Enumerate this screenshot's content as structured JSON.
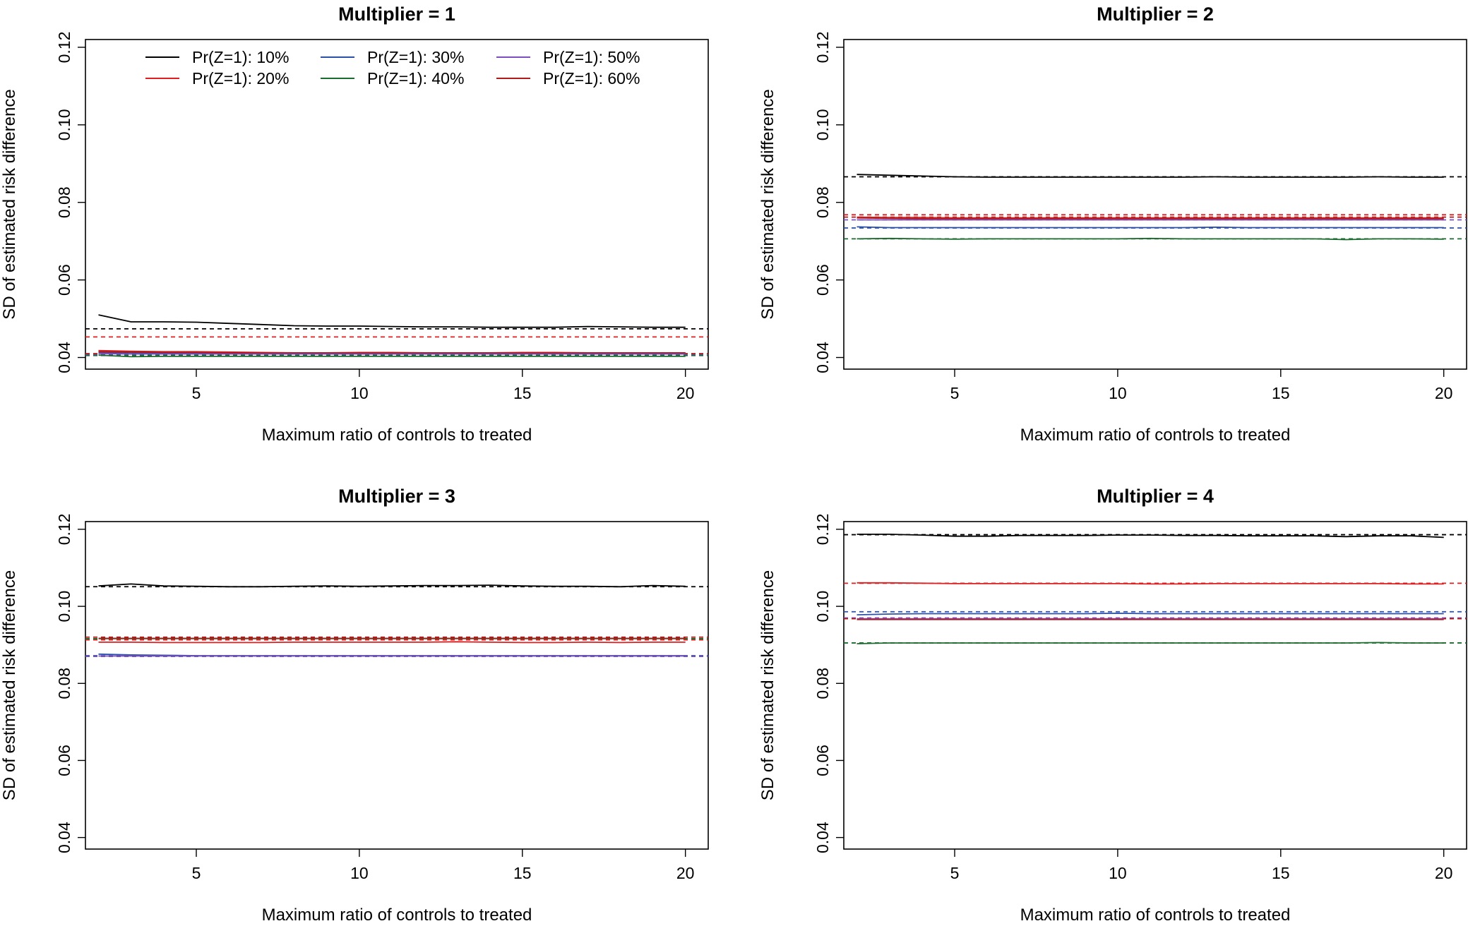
{
  "colors": {
    "10%": "#000000",
    "20%": "#DF1F1F",
    "30%": "#2C4FA8",
    "40%": "#1C6B2E",
    "50%": "#7B4FC0",
    "60%": "#B01A1A"
  },
  "chart_data": [
    {
      "type": "line",
      "title": "Multiplier = 1",
      "xlabel": "Maximum ratio of controls to treated",
      "ylabel": "SD of estimated risk difference",
      "xlim": [
        1.6,
        20.7
      ],
      "ylim": [
        0.037,
        0.122
      ],
      "xticks": [
        5,
        10,
        15,
        20
      ],
      "yticks": [
        0.04,
        0.06,
        0.08,
        0.1,
        0.12
      ],
      "ytick_labels": [
        "0.04",
        "0.06",
        "0.08",
        "0.10",
        "0.12"
      ],
      "grid": false,
      "legend": {
        "position": "top",
        "entries": [
          "Pr(Z=1): 10%",
          "Pr(Z=1): 20%",
          "Pr(Z=1): 30%",
          "Pr(Z=1): 40%",
          "Pr(Z=1): 50%",
          "Pr(Z=1): 60%"
        ]
      },
      "x": [
        2,
        3,
        4,
        5,
        6,
        7,
        8,
        9,
        10,
        11,
        12,
        13,
        14,
        15,
        16,
        17,
        18,
        19,
        20
      ],
      "series": [
        {
          "name": "Pr(Z=1): 10%",
          "color_key": "10%",
          "values": [
            0.051,
            0.0492,
            0.0492,
            0.0491,
            0.0488,
            0.0485,
            0.0482,
            0.0481,
            0.0481,
            0.048,
            0.0479,
            0.0479,
            0.0478,
            0.0478,
            0.0478,
            0.048,
            0.0479,
            0.0478,
            0.0478
          ],
          "reference": 0.0474
        },
        {
          "name": "Pr(Z=1): 20%",
          "color_key": "20%",
          "values": [
            0.0418,
            0.0416,
            0.0415,
            0.0415,
            0.0414,
            0.0413,
            0.0412,
            0.0412,
            0.0413,
            0.0413,
            0.0412,
            0.0412,
            0.0412,
            0.0413,
            0.0413,
            0.0412,
            0.0412,
            0.0412,
            0.0412
          ],
          "reference": 0.0453
        },
        {
          "name": "Pr(Z=1): 30%",
          "color_key": "30%",
          "values": [
            0.0413,
            0.0412,
            0.0411,
            0.0411,
            0.041,
            0.041,
            0.041,
            0.041,
            0.041,
            0.041,
            0.041,
            0.041,
            0.041,
            0.041,
            0.041,
            0.041,
            0.041,
            0.041,
            0.041
          ],
          "reference": 0.0408
        },
        {
          "name": "Pr(Z=1): 40%",
          "color_key": "40%",
          "values": [
            0.0406,
            0.0402,
            0.0403,
            0.0403,
            0.0403,
            0.0403,
            0.0403,
            0.0403,
            0.0403,
            0.0403,
            0.0403,
            0.0403,
            0.0403,
            0.0403,
            0.0403,
            0.0403,
            0.0403,
            0.0403,
            0.0403
          ],
          "reference": 0.0405
        },
        {
          "name": "Pr(Z=1): 50%",
          "color_key": "50%",
          "values": [
            0.041,
            0.0409,
            0.0409,
            0.0409,
            0.0409,
            0.0409,
            0.0409,
            0.0409,
            0.0409,
            0.0409,
            0.0409,
            0.0409,
            0.0409,
            0.0409,
            0.0409,
            0.0409,
            0.0409,
            0.0409,
            0.0409
          ],
          "reference": 0.0409
        },
        {
          "name": "Pr(Z=1): 60%",
          "color_key": "60%",
          "values": [
            0.0415,
            0.0414,
            0.0413,
            0.0413,
            0.0412,
            0.0412,
            0.0412,
            0.0412,
            0.0412,
            0.0412,
            0.0412,
            0.0412,
            0.0412,
            0.0412,
            0.0412,
            0.0412,
            0.0412,
            0.0412,
            0.0412
          ],
          "reference": 0.041
        }
      ]
    },
    {
      "type": "line",
      "title": "Multiplier = 2",
      "xlabel": "Maximum ratio of controls to treated",
      "ylabel": "SD of estimated risk difference",
      "xlim": [
        1.6,
        20.7
      ],
      "ylim": [
        0.037,
        0.122
      ],
      "xticks": [
        5,
        10,
        15,
        20
      ],
      "yticks": [
        0.04,
        0.06,
        0.08,
        0.1,
        0.12
      ],
      "ytick_labels": [
        "0.04",
        "0.06",
        "0.08",
        "0.10",
        "0.12"
      ],
      "grid": false,
      "x": [
        2,
        3,
        4,
        5,
        6,
        7,
        8,
        9,
        10,
        11,
        12,
        13,
        14,
        15,
        16,
        17,
        18,
        19,
        20
      ],
      "series": [
        {
          "name": "Pr(Z=1): 10%",
          "color_key": "10%",
          "values": [
            0.0872,
            0.087,
            0.0868,
            0.0866,
            0.0865,
            0.0865,
            0.0865,
            0.0865,
            0.0865,
            0.0865,
            0.0865,
            0.0866,
            0.0865,
            0.0865,
            0.0865,
            0.0865,
            0.0866,
            0.0865,
            0.0865
          ],
          "reference": 0.0866
        },
        {
          "name": "Pr(Z=1): 20%",
          "color_key": "20%",
          "values": [
            0.0762,
            0.0761,
            0.0761,
            0.076,
            0.076,
            0.076,
            0.076,
            0.076,
            0.076,
            0.076,
            0.076,
            0.076,
            0.076,
            0.076,
            0.076,
            0.076,
            0.076,
            0.076,
            0.076
          ],
          "reference": 0.0768
        },
        {
          "name": "Pr(Z=1): 30%",
          "color_key": "30%",
          "values": [
            0.0737,
            0.0735,
            0.0735,
            0.0735,
            0.0735,
            0.0735,
            0.0735,
            0.0735,
            0.0735,
            0.0735,
            0.0735,
            0.0736,
            0.0735,
            0.0735,
            0.0735,
            0.0735,
            0.0735,
            0.0735,
            0.0735
          ],
          "reference": 0.0734
        },
        {
          "name": "Pr(Z=1): 40%",
          "color_key": "40%",
          "values": [
            0.0706,
            0.0707,
            0.0706,
            0.0705,
            0.0706,
            0.0706,
            0.0706,
            0.0706,
            0.0706,
            0.0707,
            0.0706,
            0.0706,
            0.0706,
            0.0706,
            0.0706,
            0.0704,
            0.0706,
            0.0706,
            0.0705
          ],
          "reference": 0.0706
        },
        {
          "name": "Pr(Z=1): 50%",
          "color_key": "50%",
          "values": [
            0.0755,
            0.0755,
            0.0755,
            0.0755,
            0.0755,
            0.0755,
            0.0755,
            0.0755,
            0.0755,
            0.0755,
            0.0755,
            0.0755,
            0.0755,
            0.0755,
            0.0755,
            0.0755,
            0.0755,
            0.0755,
            0.0755
          ],
          "reference": 0.0755
        },
        {
          "name": "Pr(Z=1): 60%",
          "color_key": "60%",
          "values": [
            0.076,
            0.0759,
            0.0758,
            0.0758,
            0.0758,
            0.0758,
            0.0758,
            0.0758,
            0.0758,
            0.0758,
            0.0758,
            0.0758,
            0.0758,
            0.0758,
            0.0758,
            0.0758,
            0.0758,
            0.0758,
            0.0758
          ],
          "reference": 0.0762
        }
      ]
    },
    {
      "type": "line",
      "title": "Multiplier = 3",
      "xlabel": "Maximum ratio of controls to treated",
      "ylabel": "SD of estimated risk difference",
      "xlim": [
        1.6,
        20.7
      ],
      "ylim": [
        0.037,
        0.122
      ],
      "xticks": [
        5,
        10,
        15,
        20
      ],
      "yticks": [
        0.04,
        0.06,
        0.08,
        0.1,
        0.12
      ],
      "ytick_labels": [
        "0.04",
        "0.06",
        "0.08",
        "0.10",
        "0.12"
      ],
      "grid": false,
      "x": [
        2,
        3,
        4,
        5,
        6,
        7,
        8,
        9,
        10,
        11,
        12,
        13,
        14,
        15,
        16,
        17,
        18,
        19,
        20
      ],
      "series": [
        {
          "name": "Pr(Z=1): 10%",
          "color_key": "10%",
          "values": [
            0.1053,
            0.1058,
            0.1053,
            0.1052,
            0.1051,
            0.1051,
            0.1052,
            0.1053,
            0.1052,
            0.1053,
            0.1054,
            0.1054,
            0.1055,
            0.1053,
            0.1052,
            0.1052,
            0.1051,
            0.1054,
            0.1052
          ],
          "reference": 0.1051
        },
        {
          "name": "Pr(Z=1): 20%",
          "color_key": "20%",
          "values": [
            0.0907,
            0.0907,
            0.0906,
            0.0906,
            0.0906,
            0.0906,
            0.0907,
            0.0907,
            0.0907,
            0.0907,
            0.0907,
            0.0908,
            0.0907,
            0.0906,
            0.0906,
            0.0907,
            0.0906,
            0.0907,
            0.0907
          ],
          "reference": 0.0913
        },
        {
          "name": "Pr(Z=1): 30%",
          "color_key": "30%",
          "values": [
            0.0876,
            0.0874,
            0.0873,
            0.0872,
            0.0872,
            0.0872,
            0.0872,
            0.0872,
            0.0872,
            0.0872,
            0.0872,
            0.0872,
            0.0872,
            0.0872,
            0.0872,
            0.0872,
            0.0872,
            0.0872,
            0.0872
          ],
          "reference": 0.0872
        },
        {
          "name": "Pr(Z=1): 40%",
          "color_key": "40%",
          "values": [
            0.0916,
            0.0916,
            0.0916,
            0.0916,
            0.0916,
            0.0916,
            0.0916,
            0.0916,
            0.0916,
            0.0916,
            0.0916,
            0.0916,
            0.0916,
            0.0916,
            0.0916,
            0.0916,
            0.0916,
            0.0916,
            0.0916
          ],
          "reference": 0.0916
        },
        {
          "name": "Pr(Z=1): 50%",
          "color_key": "50%",
          "values": [
            0.0871,
            0.0871,
            0.0871,
            0.0871,
            0.0871,
            0.0871,
            0.0871,
            0.0871,
            0.0871,
            0.0871,
            0.0871,
            0.0871,
            0.0871,
            0.0871,
            0.0871,
            0.0871,
            0.0871,
            0.0871,
            0.0871
          ],
          "reference": 0.087
        },
        {
          "name": "Pr(Z=1): 60%",
          "color_key": "60%",
          "values": [
            0.0917,
            0.0917,
            0.0917,
            0.0917,
            0.0917,
            0.0917,
            0.0917,
            0.0917,
            0.0917,
            0.0917,
            0.0917,
            0.0917,
            0.0917,
            0.0917,
            0.0917,
            0.0917,
            0.0917,
            0.0917,
            0.0917
          ],
          "reference": 0.092
        }
      ]
    },
    {
      "type": "line",
      "title": "Multiplier = 4",
      "xlabel": "Maximum ratio of controls to treated",
      "ylabel": "SD of estimated risk difference",
      "xlim": [
        1.6,
        20.7
      ],
      "ylim": [
        0.037,
        0.122
      ],
      "xticks": [
        5,
        10,
        15,
        20
      ],
      "yticks": [
        0.04,
        0.06,
        0.08,
        0.1,
        0.12
      ],
      "ytick_labels": [
        "0.04",
        "0.06",
        "0.08",
        "0.10",
        "0.12"
      ],
      "grid": false,
      "x": [
        2,
        3,
        4,
        5,
        6,
        7,
        8,
        9,
        10,
        11,
        12,
        13,
        14,
        15,
        16,
        17,
        18,
        19,
        20
      ],
      "series": [
        {
          "name": "Pr(Z=1): 10%",
          "color_key": "10%",
          "values": [
            0.1187,
            0.1187,
            0.1185,
            0.1182,
            0.1182,
            0.1184,
            0.1184,
            0.1184,
            0.1185,
            0.1185,
            0.1184,
            0.1184,
            0.1183,
            0.1183,
            0.1183,
            0.1181,
            0.1183,
            0.1183,
            0.1179
          ],
          "reference": 0.1186
        },
        {
          "name": "Pr(Z=1): 20%",
          "color_key": "20%",
          "values": [
            0.1061,
            0.1061,
            0.106,
            0.1059,
            0.1059,
            0.1059,
            0.1059,
            0.1059,
            0.1059,
            0.1058,
            0.1058,
            0.1059,
            0.1059,
            0.1059,
            0.1059,
            0.1059,
            0.1059,
            0.1058,
            0.1058
          ],
          "reference": 0.106
        },
        {
          "name": "Pr(Z=1): 30%",
          "color_key": "30%",
          "values": [
            0.0978,
            0.098,
            0.0981,
            0.0981,
            0.0981,
            0.0981,
            0.0981,
            0.0981,
            0.0982,
            0.0981,
            0.0981,
            0.0981,
            0.0981,
            0.0981,
            0.0981,
            0.0981,
            0.0981,
            0.0981,
            0.0981
          ],
          "reference": 0.0986
        },
        {
          "name": "Pr(Z=1): 40%",
          "color_key": "40%",
          "values": [
            0.0903,
            0.0905,
            0.0905,
            0.0905,
            0.0905,
            0.0905,
            0.0905,
            0.0905,
            0.0905,
            0.0905,
            0.0905,
            0.0905,
            0.0905,
            0.0905,
            0.0905,
            0.0905,
            0.0906,
            0.0905,
            0.0905
          ],
          "reference": 0.0905
        },
        {
          "name": "Pr(Z=1): 50%",
          "color_key": "50%",
          "values": [
            0.0968,
            0.0968,
            0.0968,
            0.0968,
            0.0968,
            0.0968,
            0.0968,
            0.0968,
            0.0968,
            0.0968,
            0.0968,
            0.0968,
            0.0968,
            0.0968,
            0.0968,
            0.0968,
            0.0968,
            0.0968,
            0.0968
          ],
          "reference": 0.097
        },
        {
          "name": "Pr(Z=1): 60%",
          "color_key": "60%",
          "values": [
            0.0966,
            0.0966,
            0.0966,
            0.0966,
            0.0966,
            0.0966,
            0.0966,
            0.0966,
            0.0966,
            0.0966,
            0.0966,
            0.0966,
            0.0966,
            0.0966,
            0.0966,
            0.0966,
            0.0966,
            0.0966,
            0.0966
          ],
          "reference": 0.0968
        }
      ]
    }
  ]
}
